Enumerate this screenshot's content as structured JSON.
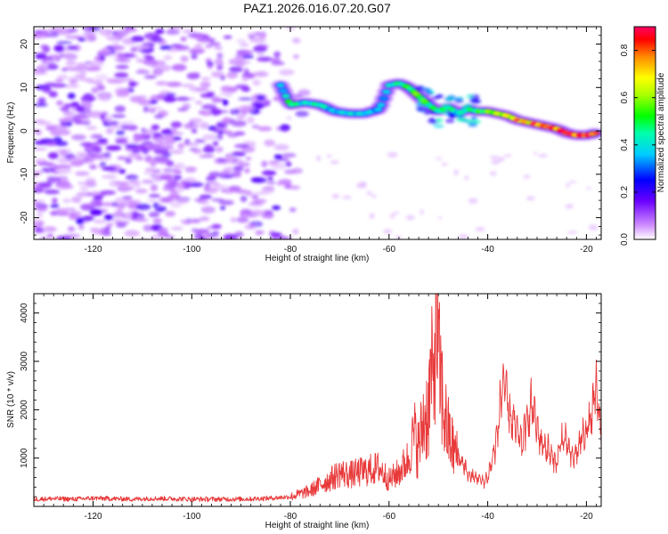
{
  "title": "PAZ1.2026.016.07.20.G07",
  "chart_data": [
    {
      "type": "heatmap",
      "title": "PAZ1.2026.016.07.20.G07",
      "xlabel": "Height of straight line (km)",
      "ylabel": "Frequency (Hz)",
      "xlim": [
        -132,
        -17
      ],
      "ylim": [
        -25,
        24
      ],
      "xticks": [
        -120,
        -100,
        -80,
        -60,
        -40,
        -20
      ],
      "xtick_labels": [
        "-120",
        "-100",
        "-80",
        "-60",
        "-40",
        "-20"
      ],
      "yticks": [
        20,
        10,
        0,
        -10,
        -20
      ],
      "ytick_labels": [
        "20",
        "10",
        "0",
        "-10",
        "-20"
      ],
      "colorbar": {
        "label": "Normalized spectral amplitude",
        "range": [
          0,
          0.9
        ],
        "ticks": [
          0,
          0.2,
          0.4,
          0.6,
          0.8
        ],
        "tick_labels": [
          "0.0",
          "0.2",
          "0.4",
          "0.6",
          "0.8"
        ]
      },
      "ridge": {
        "x": [
          -82,
          -80,
          -77,
          -74,
          -71,
          -68,
          -65,
          -62,
          -60,
          -58,
          -56,
          -54,
          -52,
          -50,
          -48,
          -46,
          -44,
          -42,
          -40,
          -38,
          -36,
          -34,
          -32,
          -30,
          -28,
          -26,
          -24,
          -22,
          -20,
          -18
        ],
        "y": [
          10.5,
          6,
          6.5,
          6,
          4.5,
          4,
          4,
          5,
          10.5,
          11,
          10,
          8,
          6,
          4.5,
          5.5,
          4,
          5,
          4.5,
          4.5,
          4,
          3.5,
          2.5,
          2,
          1.5,
          1,
          0.5,
          -0.5,
          -1,
          -1,
          -0.5
        ],
        "amplitude": [
          0.35,
          0.5,
          0.4,
          0.45,
          0.35,
          0.4,
          0.38,
          0.35,
          0.4,
          0.45,
          0.5,
          0.55,
          0.5,
          0.45,
          0.48,
          0.4,
          0.45,
          0.5,
          0.55,
          0.6,
          0.65,
          0.68,
          0.72,
          0.75,
          0.8,
          0.82,
          0.85,
          0.8,
          0.85,
          0.8
        ]
      }
    },
    {
      "type": "line",
      "xlabel": "Height of straight line (km)",
      "ylabel": "SNR (10 * v/v)",
      "xlim": [
        -132,
        -17
      ],
      "ylim": [
        0,
        4400
      ],
      "xticks": [
        -120,
        -100,
        -80,
        -60,
        -40,
        -20
      ],
      "xtick_labels": [
        "-120",
        "-100",
        "-80",
        "-60",
        "-40",
        "-20"
      ],
      "yticks": [
        1000,
        2000,
        3000,
        4000
      ],
      "ytick_labels": [
        "1000",
        "2000",
        "3000",
        "4000"
      ],
      "series": [
        {
          "name": "SNR",
          "color": "#e8393a",
          "x": [
            -132,
            -128,
            -124,
            -120,
            -116,
            -112,
            -108,
            -104,
            -100,
            -96,
            -92,
            -88,
            -84,
            -80,
            -78,
            -76,
            -74,
            -72,
            -70,
            -68,
            -66,
            -64,
            -62,
            -60,
            -58,
            -56,
            -55,
            -54,
            -53,
            -52,
            -51.5,
            -51,
            -50.5,
            -50,
            -49.5,
            -49,
            -48,
            -47,
            -46,
            -45,
            -44,
            -43,
            -42,
            -41,
            -40,
            -39,
            -38,
            -37,
            -36.5,
            -36,
            -35,
            -34,
            -33,
            -32,
            -31,
            -30,
            -29,
            -28,
            -27,
            -26,
            -25,
            -24,
            -23,
            -22,
            -21,
            -20,
            -19,
            -18,
            -17
          ],
          "y": [
            150,
            160,
            150,
            170,
            160,
            150,
            165,
            160,
            150,
            150,
            150,
            155,
            170,
            200,
            260,
            320,
            450,
            550,
            700,
            650,
            700,
            750,
            800,
            550,
            700,
            1000,
            1500,
            1200,
            1800,
            2000,
            2800,
            2400,
            4350,
            2900,
            2600,
            2000,
            1500,
            1200,
            1000,
            900,
            650,
            600,
            600,
            500,
            600,
            1000,
            1500,
            2600,
            2500,
            2000,
            1800,
            1500,
            1300,
            1800,
            2100,
            1600,
            1300,
            1200,
            1000,
            900,
            1400,
            1300,
            1000,
            1100,
            1400,
            1600,
            1800,
            2400,
            1500
          ]
        }
      ]
    }
  ]
}
